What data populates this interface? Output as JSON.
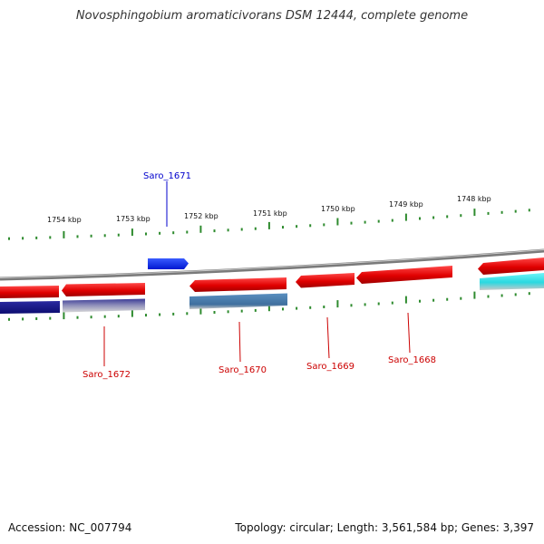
{
  "title": "Novosphingobium aromaticivorans DSM 12444, complete genome",
  "footer": {
    "accession": "Accession: NC_007794",
    "info": "Topology: circular; Length: 3,561,584 bp; Genes: 3,397"
  },
  "colors": {
    "backbone": "#8c8c8c",
    "tick": "#2e8b2e",
    "forward_gene": "#e00000",
    "reverse_gene_dark": "#1a1a8c",
    "reverse_gene_steel": "#4a7fb0",
    "reverse_gene_cyan": "#3ee0e8",
    "highlight_gene": "#0022ee",
    "label_red": "#cc0000",
    "label_blue": "#0000cc"
  },
  "scale": {
    "unit": "kbp",
    "labels": [
      "1754 kbp",
      "1753 kbp",
      "1752 kbp",
      "1751 kbp",
      "1750 kbp",
      "1749 kbp",
      "1748 kbp"
    ]
  },
  "gene_labels": [
    "Saro_1671",
    "Saro_1672",
    "Saro_1670",
    "Saro_1669",
    "Saro_1668"
  ]
}
